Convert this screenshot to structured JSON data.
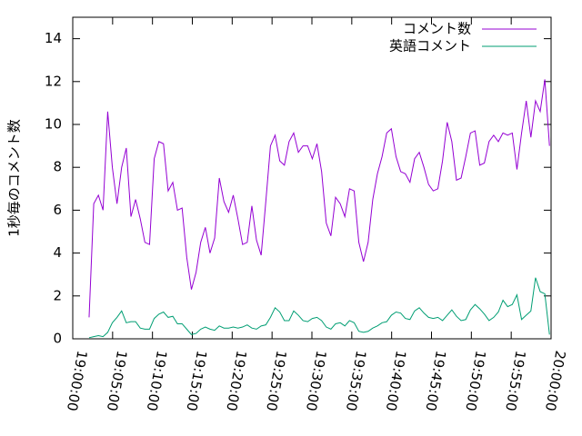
{
  "chart_data": {
    "type": "line",
    "y_label": "1秒毎のコメント数",
    "x": [
      "19:02:03",
      "19:02:38",
      "19:03:13",
      "19:03:48",
      "19:04:23",
      "19:04:58",
      "19:05:33",
      "19:06:08",
      "19:06:43",
      "19:07:18",
      "19:07:53",
      "19:08:28",
      "19:09:03",
      "19:09:38",
      "19:10:13",
      "19:10:48",
      "19:11:23",
      "19:11:58",
      "19:12:33",
      "19:13:08",
      "19:13:43",
      "19:14:18",
      "19:14:53",
      "19:15:28",
      "19:16:03",
      "19:16:38",
      "19:17:13",
      "19:17:48",
      "19:18:23",
      "19:18:58",
      "19:19:33",
      "19:20:08",
      "19:20:43",
      "19:21:18",
      "19:21:53",
      "19:22:28",
      "19:23:03",
      "19:23:38",
      "19:24:13",
      "19:24:48",
      "19:25:23",
      "19:25:58",
      "19:26:33",
      "19:27:08",
      "19:27:43",
      "19:28:18",
      "19:28:53",
      "19:29:28",
      "19:30:03",
      "19:30:38",
      "19:31:13",
      "19:31:48",
      "19:32:23",
      "19:32:58",
      "19:33:33",
      "19:34:08",
      "19:34:43",
      "19:35:18",
      "19:35:53",
      "19:36:28",
      "19:37:03",
      "19:37:38",
      "19:38:13",
      "19:38:48",
      "19:39:23",
      "19:39:58",
      "19:40:33",
      "19:41:08",
      "19:41:43",
      "19:42:18",
      "19:42:53",
      "19:43:28",
      "19:44:03",
      "19:44:38",
      "19:45:13",
      "19:45:48",
      "19:46:23",
      "19:46:58",
      "19:47:33",
      "19:48:08",
      "19:48:43",
      "19:49:18",
      "19:49:53",
      "19:50:28",
      "19:51:03",
      "19:51:38",
      "19:52:13",
      "19:52:48",
      "19:53:23",
      "19:53:58",
      "19:54:33",
      "19:55:08",
      "19:55:43",
      "19:56:18",
      "19:56:53",
      "19:57:28",
      "19:58:03",
      "19:58:38",
      "19:59:13",
      "19:59:48"
    ],
    "series": [
      {
        "name": "コメント数",
        "color": "#9400d3",
        "values": [
          1.0,
          6.3,
          6.7,
          6.0,
          10.6,
          8.0,
          6.3,
          8.0,
          8.9,
          5.7,
          6.5,
          5.6,
          4.5,
          4.4,
          8.4,
          9.2,
          9.1,
          6.9,
          7.3,
          6.0,
          6.1,
          3.8,
          2.3,
          3.1,
          4.5,
          5.2,
          4.0,
          4.7,
          7.5,
          6.4,
          5.9,
          6.7,
          5.6,
          4.4,
          4.5,
          6.2,
          4.6,
          3.9,
          6.4,
          9.0,
          9.5,
          8.3,
          8.1,
          9.2,
          9.6,
          8.7,
          9.0,
          9.0,
          8.4,
          9.1,
          7.8,
          5.4,
          4.8,
          6.6,
          6.3,
          5.7,
          7.0,
          6.9,
          4.5,
          3.6,
          4.5,
          6.5,
          7.7,
          8.5,
          9.6,
          9.8,
          8.5,
          7.8,
          7.7,
          7.3,
          8.4,
          8.7,
          8.0,
          7.2,
          6.9,
          7.0,
          8.3,
          10.1,
          9.2,
          7.4,
          7.5,
          8.5,
          9.6,
          9.7,
          8.1,
          8.2,
          9.2,
          9.5,
          9.2,
          9.6,
          9.5,
          9.6,
          7.9,
          9.6,
          11.1,
          9.4,
          11.1,
          10.6,
          12.1,
          9.0
        ]
      },
      {
        "name": "英語コメント",
        "color": "#009e73",
        "values": [
          0.05,
          0.1,
          0.15,
          0.1,
          0.3,
          0.75,
          1.0,
          1.3,
          0.75,
          0.8,
          0.8,
          0.5,
          0.45,
          0.45,
          0.95,
          1.15,
          1.25,
          1.0,
          1.05,
          0.7,
          0.7,
          0.45,
          0.2,
          0.25,
          0.45,
          0.55,
          0.45,
          0.4,
          0.6,
          0.5,
          0.5,
          0.55,
          0.5,
          0.55,
          0.65,
          0.5,
          0.45,
          0.6,
          0.65,
          1.0,
          1.45,
          1.25,
          0.85,
          0.85,
          1.3,
          1.1,
          0.85,
          0.8,
          0.95,
          1.0,
          0.85,
          0.55,
          0.45,
          0.7,
          0.75,
          0.6,
          0.85,
          0.75,
          0.35,
          0.3,
          0.35,
          0.5,
          0.6,
          0.75,
          0.8,
          1.1,
          1.25,
          1.2,
          0.95,
          0.9,
          1.3,
          1.45,
          1.2,
          1.0,
          0.95,
          1.0,
          0.85,
          1.1,
          1.35,
          1.05,
          0.85,
          0.9,
          1.35,
          1.6,
          1.4,
          1.15,
          0.85,
          1.0,
          1.25,
          1.8,
          1.5,
          1.6,
          2.05,
          0.9,
          1.1,
          1.3,
          2.85,
          2.2,
          2.1,
          0.2
        ]
      }
    ],
    "xlim": [
      "19:00:00",
      "20:00:00"
    ],
    "xticks": [
      "19:00:00",
      "19:05:00",
      "19:10:00",
      "19:15:00",
      "19:20:00",
      "19:25:00",
      "19:30:00",
      "19:35:00",
      "19:40:00",
      "19:45:00",
      "19:50:00",
      "19:55:00",
      "20:00:00"
    ],
    "ylim": [
      0,
      15
    ],
    "yticks": [
      0,
      2,
      4,
      6,
      8,
      10,
      12,
      14
    ],
    "legend": "top-right"
  }
}
